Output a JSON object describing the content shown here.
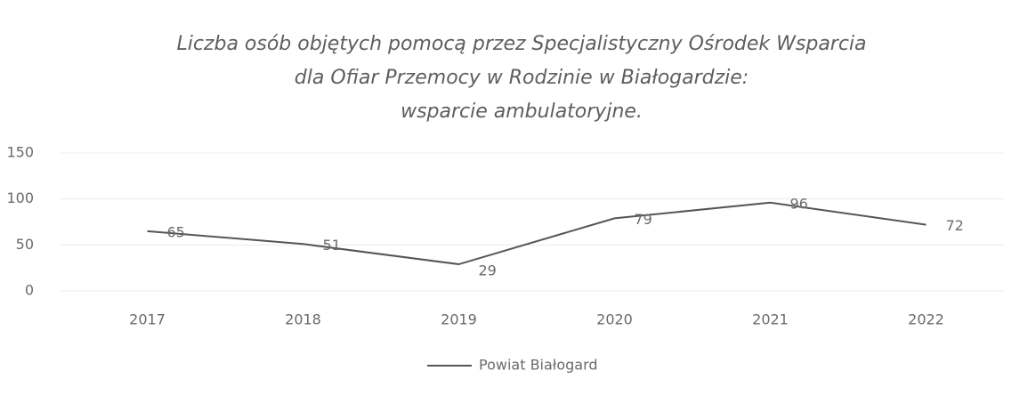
{
  "chart_data": {
    "type": "line",
    "title": [
      "Liczba osób objętych pomocą przez Specjalistyczny Ośrodek Wsparcia",
      "dla Ofiar Przemocy w Rodzinie w Białogardzie:",
      "wsparcie ambulatoryjne."
    ],
    "categories": [
      "2017",
      "2018",
      "2019",
      "2020",
      "2021",
      "2022"
    ],
    "series": [
      {
        "name": "Powiat Białogard",
        "color": "#555555",
        "values": [
          65,
          51,
          29,
          79,
          96,
          72
        ]
      }
    ],
    "ylim": [
      0,
      150
    ],
    "yticks": [
      0,
      50,
      100,
      150
    ],
    "grid": true,
    "legend": "bottom"
  }
}
